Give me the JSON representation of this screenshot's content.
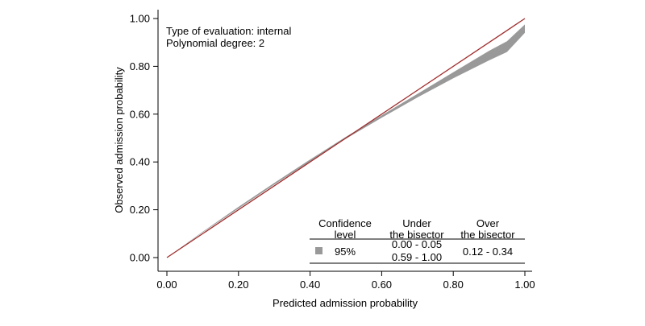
{
  "chart_data": {
    "type": "area",
    "xlabel": "Predicted admission probability",
    "ylabel": "Observed admission probability",
    "xlim": [
      0,
      1
    ],
    "ylim": [
      0,
      1
    ],
    "x_ticks": [
      "0.00",
      "0.20",
      "0.40",
      "0.60",
      "0.80",
      "1.00"
    ],
    "y_ticks": [
      "0.00",
      "0.20",
      "0.40",
      "0.60",
      "0.80",
      "1.00"
    ],
    "grid": false,
    "annotations": [
      "Type of evaluation: internal",
      "Polynomial degree: 2"
    ],
    "series": [
      {
        "kind": "band",
        "color": "#999999",
        "x": [
          0,
          0.1,
          0.2,
          0.3,
          0.4,
          0.5,
          0.6,
          0.7,
          0.8,
          0.9,
          0.95,
          1.0
        ],
        "lower": [
          0.0,
          0.105,
          0.205,
          0.305,
          0.402,
          0.497,
          0.585,
          0.67,
          0.75,
          0.825,
          0.86,
          0.94
        ],
        "upper": [
          0.0,
          0.108,
          0.212,
          0.312,
          0.41,
          0.505,
          0.595,
          0.685,
          0.775,
          0.865,
          0.905,
          0.975
        ]
      },
      {
        "kind": "line",
        "color": "#a02c2c",
        "x": [
          0,
          1
        ],
        "y": [
          0,
          1
        ]
      }
    ],
    "legend_table": {
      "placement": "bottom-right",
      "headers": {
        "col1_line1": "Confidence",
        "col1_line2": "level",
        "col2_line1": "Under",
        "col2_line2": "the bisector",
        "col3_line1": "Over",
        "col3_line2": "the bisector"
      },
      "row": {
        "swatch_color": "#999999",
        "level": "95%",
        "under_1": "0.00 - 0.05",
        "under_2": "0.59 - 1.00",
        "over": "0.12 - 0.34"
      }
    }
  }
}
